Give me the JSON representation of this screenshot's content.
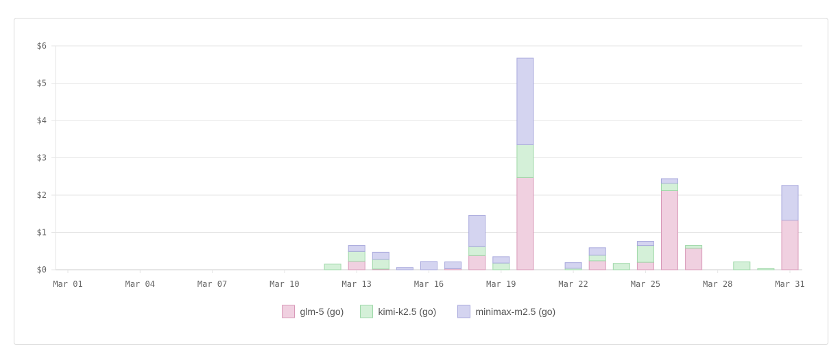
{
  "chart_data": {
    "type": "bar",
    "stacked": true,
    "title": "",
    "xlabel": "",
    "ylabel": "",
    "ylim": [
      0,
      6
    ],
    "y_ticks": [
      "$0",
      "$1",
      "$2",
      "$3",
      "$4",
      "$5",
      "$6"
    ],
    "x_tick_labels": [
      "Mar 01",
      "Mar 04",
      "Mar 07",
      "Mar 10",
      "Mar 13",
      "Mar 16",
      "Mar 19",
      "Mar 22",
      "Mar 25",
      "Mar 28",
      "Mar 31"
    ],
    "grid": true,
    "legend_position": "bottom",
    "categories": [
      "Mar 01",
      "Mar 02",
      "Mar 03",
      "Mar 04",
      "Mar 05",
      "Mar 06",
      "Mar 07",
      "Mar 08",
      "Mar 09",
      "Mar 10",
      "Mar 11",
      "Mar 12",
      "Mar 13",
      "Mar 14",
      "Mar 15",
      "Mar 16",
      "Mar 17",
      "Mar 18",
      "Mar 19",
      "Mar 20",
      "Mar 21",
      "Mar 22",
      "Mar 23",
      "Mar 24",
      "Mar 25",
      "Mar 26",
      "Mar 27",
      "Mar 28",
      "Mar 29",
      "Mar 30",
      "Mar 31"
    ],
    "series": [
      {
        "name": "glm-5 (go)",
        "fill": "#f0d0e0",
        "stroke": "#d898b8",
        "values": [
          0,
          0,
          0,
          0,
          0,
          0,
          0,
          0,
          0,
          0,
          0,
          0,
          0.23,
          0.02,
          0,
          0,
          0.03,
          0.38,
          0,
          2.47,
          0,
          0,
          0.24,
          0,
          0.2,
          2.12,
          0.58,
          0,
          0,
          0,
          1.33
        ]
      },
      {
        "name": "kimi-k2.5 (go)",
        "fill": "#d4f0d8",
        "stroke": "#9ed8a8",
        "values": [
          0,
          0,
          0,
          0,
          0,
          0,
          0,
          0,
          0,
          0,
          0,
          0.15,
          0.26,
          0.26,
          0,
          0,
          0,
          0.24,
          0.18,
          0.88,
          0,
          0.04,
          0.15,
          0.17,
          0.45,
          0.2,
          0.07,
          0,
          0.21,
          0.03,
          0
        ]
      },
      {
        "name": "minimax-m2.5 (go)",
        "fill": "#d4d4f0",
        "stroke": "#a8a8dc",
        "values": [
          0,
          0,
          0,
          0,
          0,
          0,
          0,
          0,
          0,
          0,
          0,
          0,
          0.16,
          0.19,
          0.06,
          0.22,
          0.18,
          0.84,
          0.17,
          2.32,
          0,
          0.15,
          0.2,
          0,
          0.11,
          0.12,
          0,
          0,
          0,
          0,
          0.93
        ]
      }
    ]
  }
}
